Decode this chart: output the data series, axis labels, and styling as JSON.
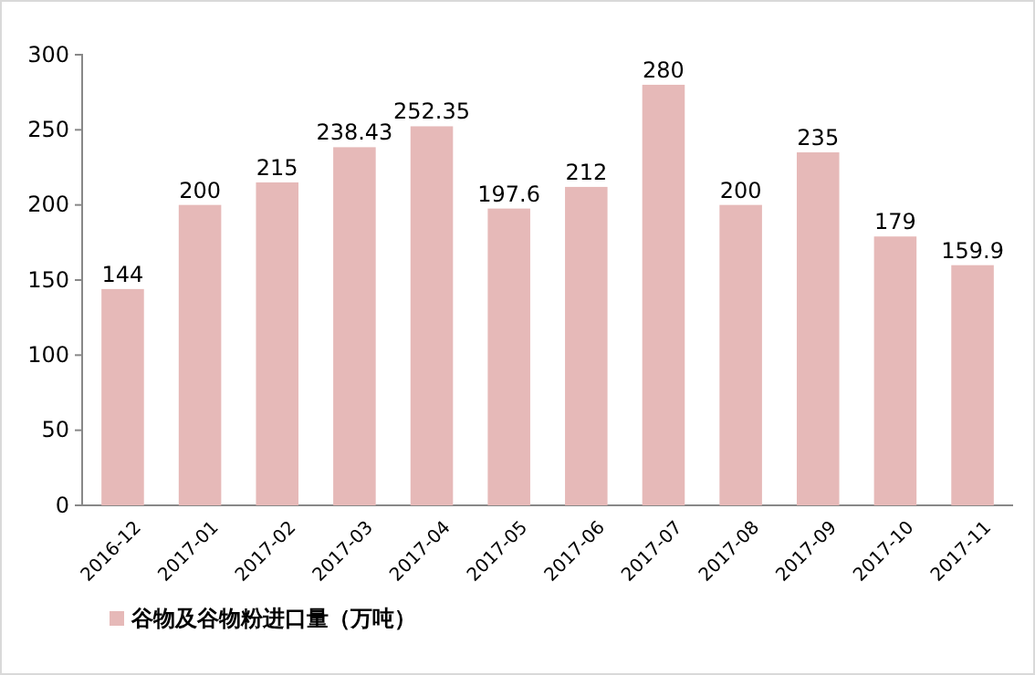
{
  "chart_data": {
    "type": "bar",
    "categories": [
      "2016-12",
      "2017-01",
      "2017-02",
      "2017-03",
      "2017-04",
      "2017-05",
      "2017-06",
      "2017-07",
      "2017-08",
      "2017-09",
      "2017-10",
      "2017-11"
    ],
    "series": [
      {
        "name": "谷物及谷物粉进口量（万吨）",
        "color": "#e6b9b8",
        "values": [
          144,
          200,
          215,
          238.43,
          252.35,
          197.6,
          212,
          280,
          200,
          235,
          179,
          159.9
        ]
      }
    ],
    "ylim": [
      0,
      300
    ],
    "yticks": [
      0,
      50,
      100,
      150,
      200,
      250,
      300
    ],
    "grid": false,
    "data_labels": true,
    "legend": "bottom"
  }
}
